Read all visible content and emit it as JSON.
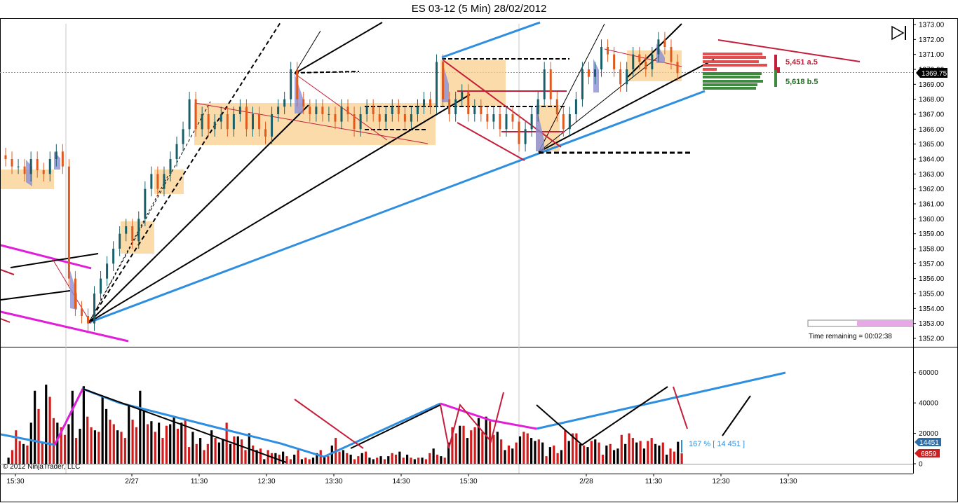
{
  "window": {
    "title": "ES 03-12 (5 Min)  28/02/2012",
    "copyright": "© 2012 NinjaTrader, LLC",
    "time_remaining": "Time remaining = 00:02:38"
  },
  "colors": {
    "bull_bar": "#17606a",
    "bear_bar": "#e05a1e",
    "zone_fill": "#f9cf8c",
    "profile_fill": "#8b8fd6",
    "trend_blue": "#2e8ee0",
    "magenta": "#e21fd8",
    "crimson": "#c41e3a",
    "vol_up": "#000000",
    "vol_down": "#d01c1c",
    "price_line": "#d08b2a"
  },
  "chart_data": [
    {
      "type": "candlestick",
      "panel": "price",
      "ylim": [
        1352,
        1373
      ],
      "y_ticks": [
        "1373.00",
        "1372.00",
        "1371.00",
        "1370.00",
        "1369.00",
        "1368.00",
        "1367.00",
        "1366.00",
        "1365.00",
        "1364.00",
        "1363.00",
        "1362.00",
        "1361.00",
        "1360.00",
        "1359.00",
        "1358.00",
        "1357.00",
        "1356.00",
        "1355.00",
        "1354.00",
        "1353.00",
        "1352.00"
      ],
      "last_price": "1369.75",
      "x_labels": [
        "15:30",
        "2/27",
        "11:30",
        "12:30",
        "13:30",
        "14:30",
        "15:30",
        "2/28",
        "11:30",
        "12:30",
        "13:30"
      ],
      "closes": [
        1364,
        1363.5,
        1363.5,
        1363,
        1364,
        1363.25,
        1363,
        1364,
        1364.5,
        1363.5,
        1356,
        1354,
        1353.5,
        1353,
        1355,
        1356,
        1357,
        1358,
        1359,
        1359.5,
        1358.5,
        1360,
        1362,
        1363,
        1362,
        1363,
        1364,
        1365,
        1366,
        1368,
        1366,
        1367,
        1366,
        1366.5,
        1367,
        1366,
        1367,
        1367.5,
        1366,
        1367,
        1366,
        1365.5,
        1367,
        1367.5,
        1368,
        1370,
        1368,
        1367.5,
        1367,
        1367.5,
        1367,
        1367,
        1366.5,
        1367.5,
        1367,
        1366,
        1367,
        1367.5,
        1367,
        1366.5,
        1367,
        1367.5,
        1367,
        1366.5,
        1367,
        1367.5,
        1368,
        1367.5,
        1370.5,
        1368,
        1367,
        1368,
        1368.5,
        1367,
        1367.5,
        1367,
        1366.5,
        1367,
        1366,
        1367,
        1366.5,
        1365,
        1366,
        1367,
        1368,
        1370,
        1368,
        1367,
        1366,
        1367,
        1368,
        1370,
        1369.5,
        1370,
        1371.5,
        1371,
        1370,
        1369,
        1370,
        1371,
        1370.5,
        1370,
        1371,
        1372,
        1371.5,
        1370.5,
        1369.75
      ],
      "annotations": [
        {
          "label": "5,451 a.5",
          "color": "#c41e3a"
        },
        {
          "label": "5,618 b.5",
          "color": "#1e6e1e"
        }
      ]
    },
    {
      "type": "bar",
      "panel": "volume",
      "ylim": [
        0,
        70000
      ],
      "y_ticks": [
        "60000",
        "40000",
        "20000",
        "0"
      ],
      "last_up_label": "14451",
      "last_down_label": "6859",
      "annotation": "167 % [ 14 451 ]",
      "values": [
        4000,
        9000,
        22000,
        15000,
        13000,
        12000,
        27000,
        48000,
        36000,
        14000,
        52000,
        44000,
        30000,
        27000,
        24000,
        19000,
        26000,
        48000,
        17000,
        23000,
        51000,
        31000,
        24000,
        22000,
        21000,
        44000,
        36000,
        29000,
        26000,
        22000,
        21000,
        17000,
        38000,
        29000,
        24000,
        48000,
        35000,
        26000,
        28000,
        21000,
        27000,
        17000,
        25000,
        26000,
        31000,
        23000,
        27000,
        29000,
        11000,
        21000,
        13000,
        17000,
        9000,
        13000,
        22000,
        17000,
        14000,
        16000,
        27000,
        13000,
        18000,
        18000,
        16000,
        9000,
        20000,
        12000,
        9000,
        10000,
        3000,
        9000,
        7000,
        7000,
        6000,
        8000,
        5000,
        3000,
        6000,
        9000,
        3000,
        4000,
        3000,
        4000,
        7000,
        9000,
        5000,
        5000,
        12000,
        17000,
        8000,
        9000,
        7000,
        6000,
        3000,
        5000,
        7000,
        8000,
        4000,
        3000,
        4000,
        5000,
        3000,
        5000,
        7000,
        6000,
        8000,
        4000,
        6000,
        4000,
        3000,
        4000,
        4000,
        3000,
        7000,
        10000,
        6000,
        5000,
        4000,
        14000,
        24000,
        20000,
        25000,
        25000,
        17000,
        22000,
        24000,
        30000,
        21000,
        31000,
        28000,
        19000,
        21000,
        16000,
        9000,
        12000,
        10000,
        14000,
        18000,
        21000,
        20000,
        17000,
        15000,
        16000,
        14000,
        5000,
        11000,
        12000,
        7000,
        9000,
        22000,
        15000,
        20000,
        20000,
        13000,
        12000,
        11000,
        15000,
        16000,
        14000,
        6000,
        12000,
        13000,
        9000,
        10000,
        19000,
        13000,
        20000,
        17000,
        14000,
        15000,
        10000,
        15000,
        17000,
        13000,
        12000,
        14000,
        6000,
        10000,
        8000,
        14451,
        6859
      ],
      "down": [
        0,
        1,
        1,
        1,
        0,
        1,
        0,
        0,
        1,
        1,
        0,
        1,
        1,
        0,
        1,
        1,
        0,
        0,
        1,
        0,
        0,
        1,
        1,
        0,
        1,
        0,
        0,
        1,
        1,
        0,
        1,
        1,
        0,
        1,
        1,
        0,
        0,
        1,
        0,
        1,
        0,
        1,
        1,
        0,
        0,
        1,
        0,
        1,
        1,
        0,
        1,
        0,
        1,
        1,
        0,
        1,
        0,
        0,
        1,
        0,
        1,
        0,
        1,
        1,
        0,
        1,
        0,
        1,
        0,
        1,
        1,
        0,
        1,
        0,
        1,
        1,
        0,
        1,
        0,
        1,
        1,
        0,
        0,
        1,
        0,
        1,
        0,
        1,
        1,
        0,
        1,
        0,
        1,
        1,
        0,
        1,
        0,
        0,
        1,
        0,
        1,
        0,
        1,
        1,
        0,
        1,
        0,
        1,
        0,
        1,
        0,
        1,
        1,
        0,
        1,
        0,
        1,
        0,
        1,
        1,
        0,
        1,
        0,
        1,
        1,
        0,
        1,
        0,
        1,
        1,
        0,
        1,
        0,
        1,
        0,
        1,
        0,
        1,
        1,
        0,
        0,
        1,
        0,
        1,
        0,
        1,
        1,
        0,
        1,
        0,
        1,
        1,
        0,
        1,
        0,
        1,
        0,
        1,
        1,
        0,
        1,
        0,
        0,
        1,
        0,
        1,
        1,
        0,
        1,
        0,
        1,
        1,
        0,
        0,
        1,
        0,
        1,
        1,
        0,
        1
      ]
    }
  ]
}
